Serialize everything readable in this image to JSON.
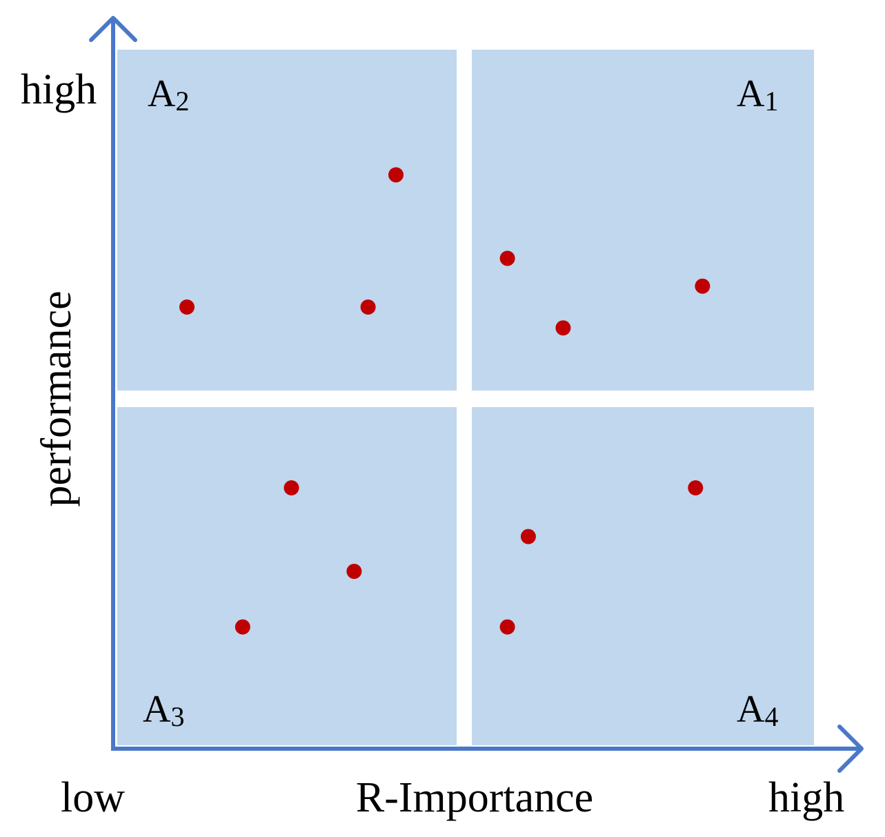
{
  "colors": {
    "quadrant_fill": "#c0d7ee",
    "axis": "#4a78c9",
    "point": "#c00000",
    "background": "#ffffff",
    "text": "#000000"
  },
  "axes": {
    "x_title": "R-Importance",
    "y_title": "performance",
    "x_low": "low",
    "x_high": "high",
    "y_high": "high"
  },
  "quadrants": [
    {
      "id": "A1",
      "letter": "A",
      "subscript": "1"
    },
    {
      "id": "A2",
      "letter": "A",
      "subscript": "2"
    },
    {
      "id": "A3",
      "letter": "A",
      "subscript": "3"
    },
    {
      "id": "A4",
      "letter": "A",
      "subscript": "4"
    }
  ],
  "points": [
    {
      "quadrant": "A2",
      "r_importance": 0.4,
      "performance": 0.82
    },
    {
      "quadrant": "A2",
      "r_importance": 0.1,
      "performance": 0.63
    },
    {
      "quadrant": "A2",
      "r_importance": 0.36,
      "performance": 0.63
    },
    {
      "quadrant": "A1",
      "r_importance": 0.56,
      "performance": 0.7
    },
    {
      "quadrant": "A1",
      "r_importance": 0.84,
      "performance": 0.66
    },
    {
      "quadrant": "A1",
      "r_importance": 0.64,
      "performance": 0.6
    },
    {
      "quadrant": "A3",
      "r_importance": 0.25,
      "performance": 0.37
    },
    {
      "quadrant": "A3",
      "r_importance": 0.34,
      "performance": 0.25
    },
    {
      "quadrant": "A3",
      "r_importance": 0.18,
      "performance": 0.17
    },
    {
      "quadrant": "A4",
      "r_importance": 0.83,
      "performance": 0.37
    },
    {
      "quadrant": "A4",
      "r_importance": 0.59,
      "performance": 0.3
    },
    {
      "quadrant": "A4",
      "r_importance": 0.56,
      "performance": 0.17
    }
  ]
}
